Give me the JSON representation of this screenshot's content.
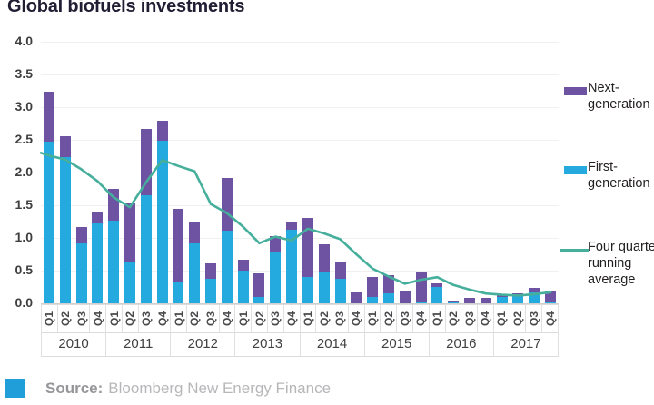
{
  "title": "Global biofuels investments",
  "colors": {
    "first_gen": "#25AADF",
    "next_gen": "#6E53A3",
    "running_avg_line": "#45AF9C",
    "source_square": "#1F9ED9",
    "grid": "#f0f0ef"
  },
  "y_axis": {
    "ticks": [
      "4.0",
      "3.5",
      "3.0",
      "2.5",
      "2.0",
      "1.5",
      "1.0",
      "0.5",
      "0.0"
    ]
  },
  "legend": {
    "items": [
      {
        "label": "Next-\ngeneration",
        "type": "swatch",
        "color": "#6E53A3"
      },
      {
        "label": "First-\ngeneration",
        "type": "swatch",
        "color": "#25AADF"
      },
      {
        "label": "Four quarter\nrunning\naverage",
        "type": "line",
        "color": "#45AF9C"
      }
    ]
  },
  "source": {
    "label": "Source:",
    "text": "Bloomberg New Energy Finance"
  },
  "chart_data": {
    "type": "bar",
    "subtype": "stacked-bars-with-line-overlay",
    "years": [
      "2010",
      "2011",
      "2012",
      "2013",
      "2014",
      "2015",
      "2016",
      "2017"
    ],
    "categories": [
      "Q1",
      "Q2",
      "Q3",
      "Q4",
      "Q1",
      "Q2",
      "Q3",
      "Q4",
      "Q1",
      "Q2",
      "Q3",
      "Q4",
      "Q1",
      "Q2",
      "Q3",
      "Q4",
      "Q1",
      "Q2",
      "Q3",
      "Q4",
      "Q1",
      "Q2",
      "Q3",
      "Q4",
      "Q1",
      "Q2",
      "Q3",
      "Q4",
      "Q1",
      "Q2",
      "Q3",
      "Q4"
    ],
    "series": [
      {
        "name": "First-generation",
        "type": "bar",
        "values": [
          2.47,
          2.24,
          0.92,
          1.22,
          1.27,
          0.64,
          1.65,
          2.49,
          0.33,
          0.92,
          0.38,
          1.11,
          0.5,
          0.1,
          0.78,
          1.13,
          0.4,
          0.48,
          0.38,
          0.0,
          0.1,
          0.15,
          0.0,
          0.02,
          0.25,
          0.02,
          0.0,
          0.0,
          0.1,
          0.12,
          0.17,
          0.02
        ]
      },
      {
        "name": "Next-generation",
        "type": "bar",
        "values": [
          0.77,
          0.31,
          0.25,
          0.18,
          0.48,
          0.9,
          1.01,
          0.3,
          1.11,
          0.33,
          0.23,
          0.81,
          0.17,
          0.36,
          0.25,
          0.12,
          0.91,
          0.42,
          0.26,
          0.16,
          0.3,
          0.28,
          0.19,
          0.45,
          0.06,
          0.01,
          0.08,
          0.09,
          0.04,
          0.03,
          0.06,
          0.16
        ]
      },
      {
        "name": "Four quarter running average",
        "type": "line",
        "edge_start": 2.3,
        "values": [
          2.26,
          2.2,
          2.05,
          1.87,
          1.62,
          1.47,
          1.85,
          2.19,
          2.1,
          2.02,
          1.52,
          1.38,
          1.17,
          0.92,
          1.02,
          0.96,
          1.14,
          1.07,
          0.98,
          0.75,
          0.53,
          0.41,
          0.3,
          0.36,
          0.4,
          0.28,
          0.21,
          0.15,
          0.13,
          0.12,
          0.14,
          0.17
        ]
      }
    ],
    "ylim": [
      0,
      4.0
    ],
    "y_tick_step": 0.5,
    "grid": "faint-horizontal",
    "legend_position": "right"
  }
}
